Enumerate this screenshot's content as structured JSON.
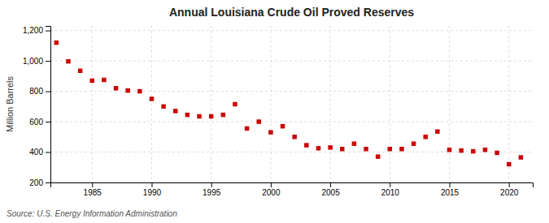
{
  "chart_data": {
    "type": "scatter",
    "title": "Annual Louisiana Crude Oil Proved Reserves",
    "y_label": "Million Barrels",
    "annotations": [
      "Source: U.S. Energy Information Administration"
    ],
    "x": [
      1982,
      1983,
      1984,
      1985,
      1986,
      1987,
      1988,
      1989,
      1990,
      1991,
      1992,
      1993,
      1994,
      1995,
      1996,
      1997,
      1998,
      1999,
      2000,
      2001,
      2002,
      2003,
      2004,
      2005,
      2006,
      2007,
      2008,
      2009,
      2010,
      2011,
      2012,
      2013,
      2014,
      2015,
      2016,
      2017,
      2018,
      2019,
      2020,
      2021
    ],
    "values": [
      1120,
      997,
      935,
      870,
      875,
      820,
      805,
      800,
      750,
      700,
      670,
      645,
      635,
      635,
      645,
      715,
      555,
      600,
      530,
      570,
      500,
      445,
      425,
      430,
      420,
      455,
      420,
      370,
      420,
      420,
      455,
      500,
      535,
      415,
      410,
      405,
      415,
      395,
      320,
      365
    ],
    "color": "#cc0000",
    "marker": "square",
    "xlim": [
      1981.5,
      2022
    ],
    "xticks": [
      1985,
      1990,
      1995,
      2000,
      2005,
      2010,
      2015,
      2020
    ],
    "ylim": [
      200,
      1230
    ],
    "yticks": [
      200,
      400,
      600,
      800,
      {
        "value": 1000,
        "label": "1,000"
      },
      {
        "value": 1200,
        "label": "1,200"
      }
    ],
    "grid": true
  }
}
